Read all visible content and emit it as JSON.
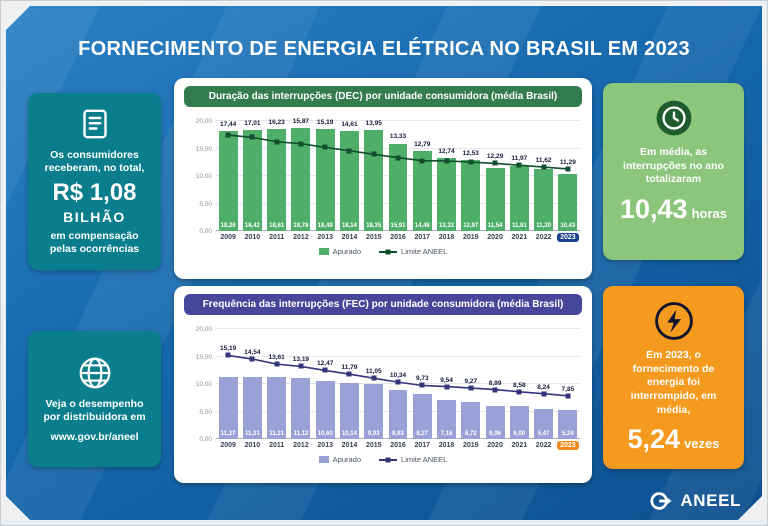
{
  "page": {
    "title": "FORNECIMENTO DE ENERGIA ELÉTRICA NO BRASIL EM 2023"
  },
  "left": {
    "compensation_card": {
      "icon": "receipt-icon",
      "line1": "Os consumidores receberam, no total,",
      "amount": "R$ 1,08",
      "amount_unit": "BILHÃO",
      "line2": "em compensação pelas ocorrências"
    },
    "distributor_card": {
      "icon": "globe-icon",
      "text": "Veja o desempenho por distribuidora em",
      "url": "www.gov.br/aneel"
    }
  },
  "right": {
    "hours_card": {
      "icon": "clock-icon",
      "text": "Em média, as interrupções no ano totalizaram",
      "value": "10,43",
      "unit": "horas"
    },
    "times_card": {
      "icon": "lightning-icon",
      "text": "Em 2023, o fornecimento de energia foi interrompido, em média,",
      "value": "5,24",
      "unit": "vezes"
    }
  },
  "footer": {
    "brand": "ANEEL"
  },
  "chart_data": [
    {
      "type": "bar",
      "title": "Duração das interrupções (DEC) por unidade consumidora (média Brasil)",
      "categories": [
        "2009",
        "2010",
        "2011",
        "2012",
        "2013",
        "2014",
        "2015",
        "2016",
        "2017",
        "2018",
        "2019",
        "2020",
        "2021",
        "2022",
        "2023"
      ],
      "highlight_category": "2023",
      "series": [
        {
          "name": "Apurado",
          "kind": "bar",
          "values": [
            18.26,
            18.42,
            18.61,
            18.78,
            18.49,
            18.14,
            18.35,
            15.91,
            14.48,
            13.33,
            12.97,
            11.54,
            11.81,
            11.2,
            10.43
          ],
          "labels": [
            "18,26",
            "18,42",
            "18,61",
            "18,78",
            "18,49",
            "18,14",
            "18,35",
            "15,91",
            "14,48",
            "13,33",
            "12,97",
            "11,54",
            "11,81",
            "11,20",
            "10,43"
          ]
        },
        {
          "name": "Limite ANEEL",
          "kind": "line",
          "values": [
            17.44,
            17.01,
            16.23,
            15.87,
            15.19,
            14.61,
            13.95,
            13.33,
            12.79,
            12.74,
            12.53,
            12.29,
            11.97,
            11.62,
            11.29
          ],
          "labels": [
            "17,44",
            "17,01",
            "16,23",
            "15,87",
            "15,19",
            "14,61",
            "13,95",
            "13,33",
            "12,79",
            "12,74",
            "12,53",
            "12,29",
            "11,97",
            "11,62",
            "11,29"
          ]
        }
      ],
      "ylim": [
        0,
        20
      ],
      "yticks": [
        "0,00",
        "5,00",
        "10,00",
        "15,00",
        "20,00"
      ],
      "ylabel": "",
      "xlabel": "",
      "legend_position": "bottom",
      "colors": {
        "header": "#337c4d",
        "bar": "#4fae68",
        "bar_label": "#ffffff",
        "line": "#114f2f",
        "point_label": "#151a3a",
        "badge_bg": "#1b418f",
        "badge_text": "#ffffff"
      }
    },
    {
      "type": "bar",
      "title": "Frequência das interrupções (FEC) por unidade consumidora (média Brasil)",
      "categories": [
        "2009",
        "2010",
        "2011",
        "2012",
        "2013",
        "2014",
        "2015",
        "2016",
        "2017",
        "2018",
        "2019",
        "2020",
        "2021",
        "2022",
        "2023"
      ],
      "highlight_category": "2023",
      "series": [
        {
          "name": "Apurado",
          "kind": "bar",
          "values": [
            11.27,
            11.31,
            11.21,
            11.12,
            10.6,
            10.14,
            9.93,
            8.93,
            8.27,
            7.16,
            6.72,
            6.06,
            6.0,
            5.47,
            5.24
          ],
          "labels": [
            "11,27",
            "11,31",
            "11,21",
            "11,12",
            "10,60",
            "10,14",
            "9,93",
            "8,93",
            "8,27",
            "7,16",
            "6,72",
            "6,06",
            "6,00",
            "5,47",
            "5,24"
          ]
        },
        {
          "name": "Limite ANEEL",
          "kind": "line",
          "values": [
            15.19,
            14.54,
            13.61,
            13.19,
            12.47,
            11.79,
            11.05,
            10.34,
            9.73,
            9.54,
            9.27,
            8.99,
            8.58,
            8.24,
            7.85
          ],
          "labels": [
            "15,19",
            "14,54",
            "13,61",
            "13,19",
            "12,47",
            "11,79",
            "11,05",
            "10,34",
            "9,73",
            "9,54",
            "9,27",
            "8,99",
            "8,58",
            "8,24",
            "7,85"
          ]
        }
      ],
      "ylim": [
        0,
        20
      ],
      "yticks": [
        "0,00",
        "5,00",
        "10,00",
        "15,00",
        "20,00"
      ],
      "ylabel": "",
      "xlabel": "",
      "legend_position": "bottom",
      "colors": {
        "header": "#46479a",
        "bar": "#9aa1d6",
        "bar_label": "#ffffff",
        "line": "#343579",
        "point_label": "#151a3a",
        "badge_bg": "#ef8a1c",
        "badge_text": "#ffffff"
      }
    }
  ]
}
